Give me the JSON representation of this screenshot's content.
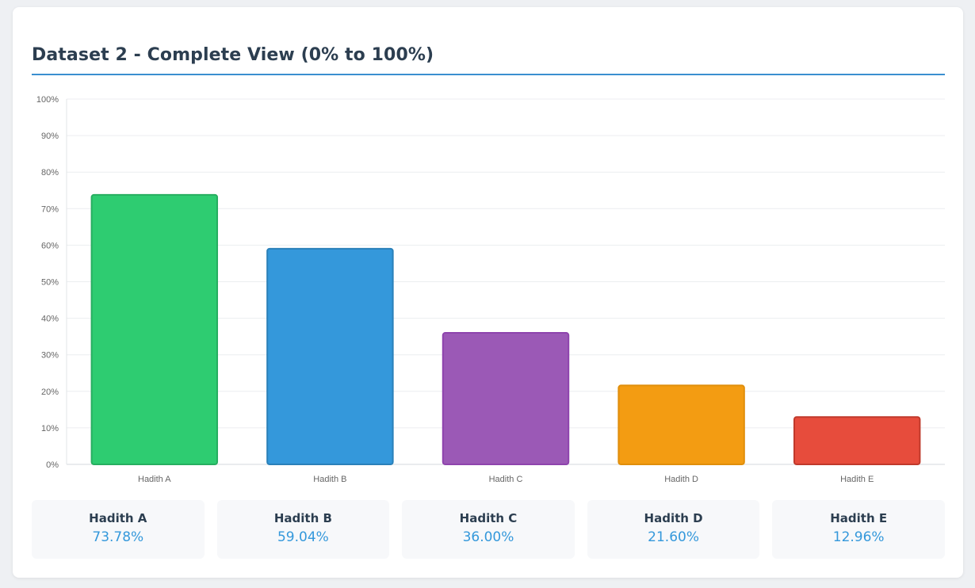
{
  "chart_data": {
    "type": "bar",
    "title": "Dataset 2 - Complete View (0% to 100%)",
    "categories": [
      "Hadith A",
      "Hadith B",
      "Hadith C",
      "Hadith D",
      "Hadith E"
    ],
    "values": [
      73.78,
      59.04,
      36.0,
      21.6,
      12.96
    ],
    "ylim": [
      0,
      100
    ],
    "yticks": [
      "0%",
      "10%",
      "20%",
      "30%",
      "40%",
      "50%",
      "60%",
      "70%",
      "80%",
      "90%",
      "100%"
    ],
    "grid": true,
    "legend": "none",
    "colors": [
      "#2ecc71",
      "#3498db",
      "#9b59b6",
      "#f39c12",
      "#e74c3c"
    ],
    "border_colors": [
      "#27ae60",
      "#2a80b9",
      "#8e44ad",
      "#e08e0b",
      "#c0392b"
    ]
  },
  "stats": [
    {
      "name": "Hadith A",
      "value": "73.78%"
    },
    {
      "name": "Hadith B",
      "value": "59.04%"
    },
    {
      "name": "Hadith C",
      "value": "36.00%"
    },
    {
      "name": "Hadith D",
      "value": "21.60%"
    },
    {
      "name": "Hadith E",
      "value": "12.96%"
    }
  ]
}
